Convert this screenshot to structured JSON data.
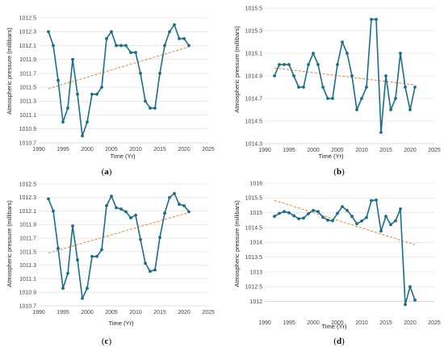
{
  "colors": {
    "series": "#1a6e8a",
    "trend": "#ee7d31",
    "grid": "#d9d9d9",
    "axis": "#bfbfbf"
  },
  "chart_data": [
    {
      "panel": "a",
      "type": "line",
      "xlabel": "Time (Yr)",
      "ylabel": "Atmospheric pressure (millibars)",
      "xlim": [
        1990,
        2025
      ],
      "ylim": [
        1010.7,
        1012.5
      ],
      "xticks": [
        1990,
        1995,
        2000,
        2005,
        2010,
        2015,
        2020,
        2025
      ],
      "xtick_labels": [
        "1990",
        "1995",
        "2000",
        "2005",
        "2010",
        "2015",
        "2020",
        "2025"
      ],
      "yticks": [
        1010.7,
        1010.9,
        1011.1,
        1011.3,
        1011.5,
        1011.7,
        1011.9,
        1012.1,
        1012.3,
        1012.5
      ],
      "ytick_labels": [
        "1010.7",
        "1010.9",
        "1011.1",
        "1011.3",
        "1011.5",
        "1011.7",
        "1011.9",
        "1012.1",
        "1012.3",
        "1012.5"
      ],
      "grid": "horizontal",
      "x": [
        1992,
        1993,
        1994,
        1995,
        1996,
        1997,
        1998,
        1999,
        2000,
        2001,
        2002,
        2003,
        2004,
        2005,
        2006,
        2007,
        2008,
        2009,
        2010,
        2011,
        2012,
        2013,
        2014,
        2015,
        2016,
        2017,
        2018,
        2019,
        2020,
        2021
      ],
      "series": [
        {
          "values": [
            1012.3,
            1012.1,
            1011.6,
            1011.0,
            1011.2,
            1011.9,
            1011.4,
            1010.8,
            1011.0,
            1011.4,
            1011.4,
            1011.5,
            1012.2,
            1012.3,
            1012.1,
            1012.1,
            1012.1,
            1012.0,
            1012.0,
            1011.7,
            1011.3,
            1011.2,
            1011.2,
            1011.7,
            1012.1,
            1012.3,
            1012.4,
            1012.2,
            1012.2,
            1012.1
          ]
        }
      ],
      "trendline": {
        "x": [
          1992,
          2021
        ],
        "y": [
          1011.48,
          1012.08
        ]
      }
    },
    {
      "panel": "b",
      "type": "line",
      "xlabel": "Time (Yr)",
      "ylabel": "Atmospheric pressure (millibars)",
      "xlim": [
        1990,
        2025
      ],
      "ylim": [
        1014.3,
        1015.5
      ],
      "xticks": [
        1990,
        1995,
        2000,
        2005,
        2010,
        2015,
        2020,
        2025
      ],
      "xtick_labels": [
        "1990",
        "1995",
        "2000",
        "2005",
        "2010",
        "2015",
        "2020",
        "2025"
      ],
      "yticks": [
        1014.3,
        1014.5,
        1014.7,
        1014.9,
        1015.1,
        1015.3,
        1015.5
      ],
      "ytick_labels": [
        "1014.3",
        "1014.5",
        "1014.7",
        "1014.9",
        "1015.1",
        "1015.3",
        "1015.5"
      ],
      "grid": "horizontal",
      "x": [
        1992,
        1993,
        1994,
        1995,
        1996,
        1997,
        1998,
        1999,
        2000,
        2001,
        2002,
        2003,
        2004,
        2005,
        2006,
        2007,
        2008,
        2009,
        2010,
        2011,
        2012,
        2013,
        2014,
        2015,
        2016,
        2017,
        2018,
        2019,
        2020,
        2021
      ],
      "series": [
        {
          "values": [
            1014.9,
            1015.0,
            1015.0,
            1015.0,
            1014.9,
            1014.8,
            1014.8,
            1015.0,
            1015.1,
            1015.0,
            1014.8,
            1014.7,
            1014.7,
            1015.0,
            1015.2,
            1015.1,
            1014.9,
            1014.6,
            1014.7,
            1014.8,
            1015.4,
            1015.4,
            1014.4,
            1014.9,
            1014.6,
            1014.7,
            1015.1,
            1014.8,
            1014.6,
            1014.8
          ]
        }
      ],
      "trendline": {
        "x": [
          1992,
          2021
        ],
        "y": [
          1014.97,
          1014.82
        ]
      }
    },
    {
      "panel": "c",
      "type": "line",
      "xlabel": "Time (Yr)",
      "ylabel": "Atmospheric pressure (millibars)",
      "xlim": [
        1990,
        2025
      ],
      "ylim": [
        1010.7,
        1012.5
      ],
      "xticks": [
        1990,
        1995,
        2000,
        2005,
        2010,
        2015,
        2020,
        2025
      ],
      "xtick_labels": [
        "1990",
        "1995",
        "2000",
        "2005",
        "2010",
        "2015",
        "2020",
        "2025"
      ],
      "yticks": [
        1010.7,
        1010.9,
        1011.1,
        1011.3,
        1011.5,
        1011.7,
        1011.9,
        1012.1,
        1012.3,
        1012.5
      ],
      "ytick_labels": [
        "1010.7",
        "1010.9",
        "1011.1",
        "1011.3",
        "1011.5",
        "1011.7",
        "1011.9",
        "1012.1",
        "1012.3",
        "1012.5"
      ],
      "grid": "horizontal",
      "x": [
        1992,
        1993,
        1994,
        1995,
        1996,
        1997,
        1998,
        1999,
        2000,
        2001,
        2002,
        2003,
        2004,
        2005,
        2006,
        2007,
        2008,
        2009,
        2010,
        2011,
        2012,
        2013,
        2014,
        2015,
        2016,
        2017,
        2018,
        2019,
        2020,
        2021
      ],
      "series": [
        {
          "values": [
            1012.28,
            1012.1,
            1011.55,
            1010.96,
            1011.18,
            1011.88,
            1011.38,
            1010.81,
            1010.96,
            1011.43,
            1011.43,
            1011.53,
            1012.18,
            1012.32,
            1012.15,
            1012.13,
            1012.09,
            1012.0,
            1012.04,
            1011.68,
            1011.33,
            1011.21,
            1011.23,
            1011.71,
            1012.07,
            1012.3,
            1012.36,
            1012.2,
            1012.18,
            1012.09
          ]
        }
      ],
      "trendline": {
        "x": [
          1992,
          2021
        ],
        "y": [
          1011.48,
          1012.08
        ]
      }
    },
    {
      "panel": "d",
      "type": "line",
      "xlabel": "Time (Yr)",
      "ylabel": "Atmospheric pressure (millibars)",
      "xlim": [
        1990,
        2025
      ],
      "ylim": [
        1011.5,
        1016
      ],
      "xticks": [
        1990,
        1995,
        2000,
        2005,
        2010,
        2015,
        2020,
        2025
      ],
      "xtick_labels": [
        "1990",
        "1995",
        "2000",
        "2005",
        "2010",
        "2015",
        "2020",
        "2025"
      ],
      "yticks": [
        1012,
        1012.5,
        1013,
        1013.5,
        1014,
        1014.5,
        1015,
        1015.5,
        1016
      ],
      "ytick_labels": [
        "1012",
        "1012.5",
        "1013",
        "1013.5",
        "1014",
        "1014.5",
        "1015",
        "1015.5",
        "1016"
      ],
      "grid": "horizontal",
      "x": [
        1992,
        1993,
        1994,
        1995,
        1996,
        1997,
        1998,
        1999,
        2000,
        2001,
        2002,
        2003,
        2004,
        2005,
        2006,
        2007,
        2008,
        2009,
        2010,
        2011,
        2012,
        2013,
        2014,
        2015,
        2016,
        2017,
        2018,
        2019,
        2020,
        2021
      ],
      "series": [
        {
          "values": [
            1014.88,
            1014.98,
            1015.04,
            1015.0,
            1014.9,
            1014.8,
            1014.82,
            1014.97,
            1015.08,
            1015.04,
            1014.85,
            1014.75,
            1014.73,
            1014.98,
            1015.21,
            1015.08,
            1014.88,
            1014.63,
            1014.72,
            1014.84,
            1015.41,
            1015.43,
            1014.38,
            1014.88,
            1014.6,
            1014.73,
            1015.13,
            1011.9,
            1012.5,
            1012.05
          ]
        }
      ],
      "trendline": {
        "x": [
          1992,
          2021
        ],
        "y": [
          1015.42,
          1013.92
        ]
      }
    }
  ],
  "panel_labels": [
    "(a)",
    "(b)",
    "(c)",
    "(d)"
  ]
}
